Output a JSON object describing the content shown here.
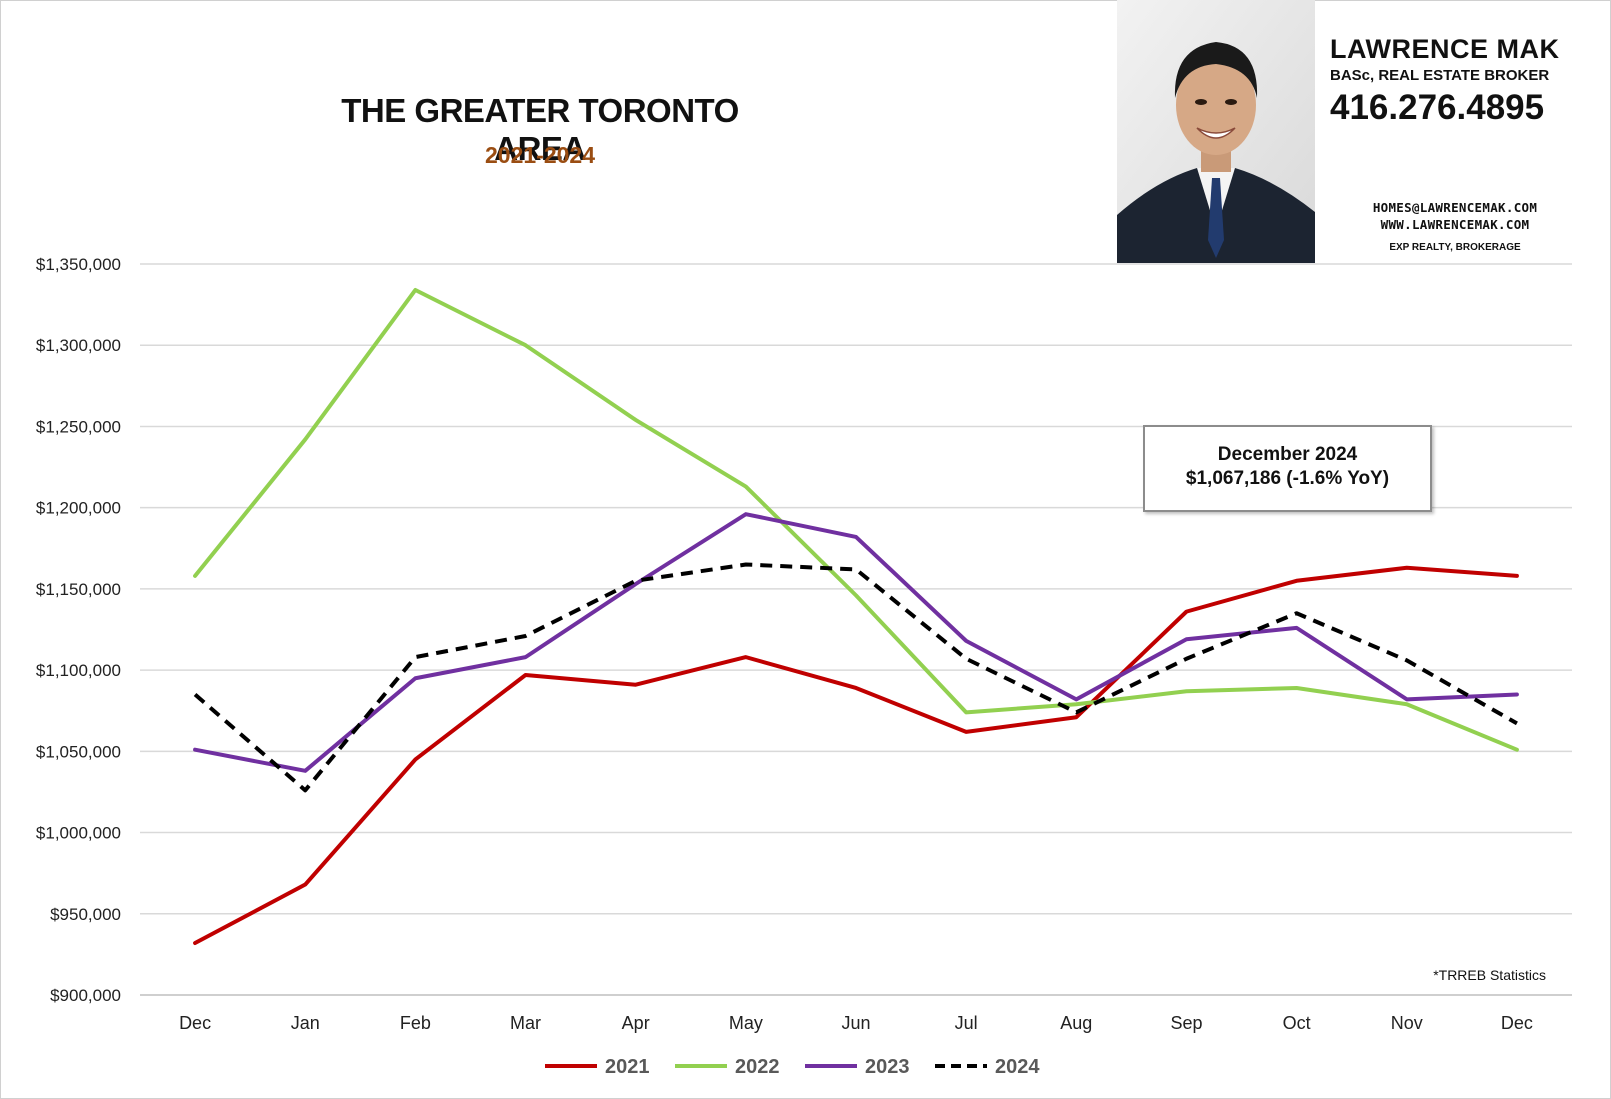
{
  "header": {
    "title": "THE GREATER TORONTO AREA",
    "subtitle": "2021-2024",
    "subtitle_color": "#9a4d12"
  },
  "agent": {
    "name": "LAWRENCE MAK",
    "title": "BASc, REAL ESTATE BROKER",
    "phone": "416.276.4895",
    "email": "HOMES@LAWRENCEMAK.COM",
    "website": "WWW.LAWRENCEMAK.COM",
    "brokerage": "EXP REALTY, BROKERAGE"
  },
  "callout": {
    "line1": "December 2024",
    "line2": "$1,067,186 (-1.6% YoY)"
  },
  "source_note": "*TRREB Statistics",
  "chart_data": {
    "type": "line",
    "title": "THE GREATER TORONTO AREA",
    "subtitle": "2021-2024",
    "xlabel": "",
    "ylabel": "",
    "categories": [
      "Dec",
      "Jan",
      "Feb",
      "Mar",
      "Apr",
      "May",
      "Jun",
      "Jul",
      "Aug",
      "Sep",
      "Oct",
      "Nov",
      "Dec"
    ],
    "ylim": [
      900000,
      1350000
    ],
    "yticks": [
      900000,
      950000,
      1000000,
      1050000,
      1100000,
      1150000,
      1200000,
      1250000,
      1300000,
      1350000
    ],
    "ytick_labels": [
      "$900,000",
      "$950,000",
      "$1,000,000",
      "$1,050,000",
      "$1,100,000",
      "$1,150,000",
      "$1,200,000",
      "$1,250,000",
      "$1,300,000",
      "$1,350,000"
    ],
    "grid": true,
    "legend_position": "bottom",
    "series": [
      {
        "name": "2021",
        "color": "#c00000",
        "dashed": false,
        "values": [
          932000,
          968000,
          1045000,
          1097000,
          1091000,
          1108000,
          1089000,
          1062000,
          1071000,
          1136000,
          1155000,
          1163000,
          1158000
        ]
      },
      {
        "name": "2022",
        "color": "#92d050",
        "dashed": false,
        "values": [
          1158000,
          1242000,
          1334000,
          1300000,
          1254000,
          1213000,
          1146000,
          1074000,
          1079000,
          1087000,
          1089000,
          1079000,
          1051000
        ]
      },
      {
        "name": "2023",
        "color": "#7030a0",
        "dashed": false,
        "values": [
          1051000,
          1038000,
          1095000,
          1108000,
          1153000,
          1196000,
          1182000,
          1118000,
          1082000,
          1119000,
          1126000,
          1082000,
          1085000
        ]
      },
      {
        "name": "2024",
        "color": "#000000",
        "dashed": true,
        "values": [
          1085000,
          1026000,
          1108000,
          1121000,
          1155000,
          1165000,
          1162000,
          1107000,
          1074000,
          1107000,
          1135000,
          1106000,
          1067186
        ]
      }
    ]
  }
}
